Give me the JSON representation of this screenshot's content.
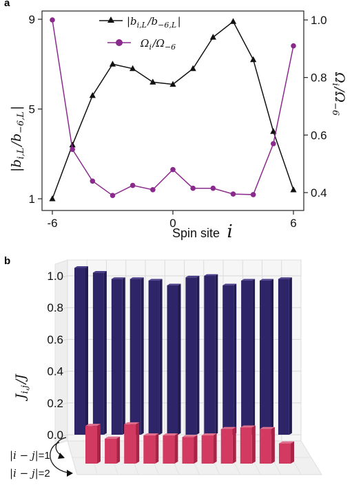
{
  "chart_data": [
    {
      "panel": "a",
      "type": "line",
      "xlabel": {
        "text": "Spin site",
        "var": "i"
      },
      "ylabel_left": "|b_{i,L}/b_{-6,L}|",
      "ylabel_right": "Ω_i/Ω_{-6}",
      "x": [
        -6,
        -5,
        -4,
        -3,
        -2,
        -1,
        0,
        1,
        2,
        3,
        4,
        5,
        6
      ],
      "xticks": [
        "-6",
        "0",
        "6"
      ],
      "yticks_left": [
        "1",
        "5",
        "9"
      ],
      "yticks_right": [
        "0.4",
        "0.6",
        "0.8",
        "1.0"
      ],
      "ylim_left": [
        0.7,
        9.2
      ],
      "ylim_right": [
        0.375,
        1.01
      ],
      "grid": false,
      "legend_position": "top-center",
      "series": [
        {
          "name": "|b_{i,L}/b_{-6,L}|",
          "axis": "left",
          "marker": "triangle",
          "color": "#111111",
          "values": [
            1.0,
            3.4,
            5.6,
            7.0,
            6.8,
            6.2,
            6.1,
            6.8,
            8.2,
            8.9,
            7.2,
            4.0,
            1.4
          ]
        },
        {
          "name": "Ω_i/Ω_{-6}",
          "axis": "right",
          "marker": "circle",
          "color": "#8b2a8d",
          "values": [
            1.0,
            0.55,
            0.44,
            0.39,
            0.425,
            0.41,
            0.48,
            0.415,
            0.415,
            0.395,
            0.393,
            0.57,
            0.91
          ]
        }
      ]
    },
    {
      "panel": "b",
      "type": "bar",
      "ylabel": "J_{i,j}/J",
      "yticks": [
        "0.0",
        "0.2",
        "0.4",
        "0.6",
        "0.8",
        "1.0"
      ],
      "ylim": [
        0,
        1.1
      ],
      "grid": true,
      "series": [
        {
          "name": "|i − j|=1",
          "color": "#2e2468",
          "values": [
            1.05,
            1.02,
            0.98,
            0.98,
            0.97,
            0.94,
            0.99,
            1.0,
            0.94,
            0.97,
            0.97,
            0.98
          ]
        },
        {
          "name": "|i − j|=2",
          "color": "#d33a62",
          "values": [
            0.22,
            0.14,
            0.23,
            0.16,
            0.16,
            0.15,
            0.16,
            0.2,
            0.21,
            0.2,
            0.11
          ]
        }
      ]
    }
  ]
}
